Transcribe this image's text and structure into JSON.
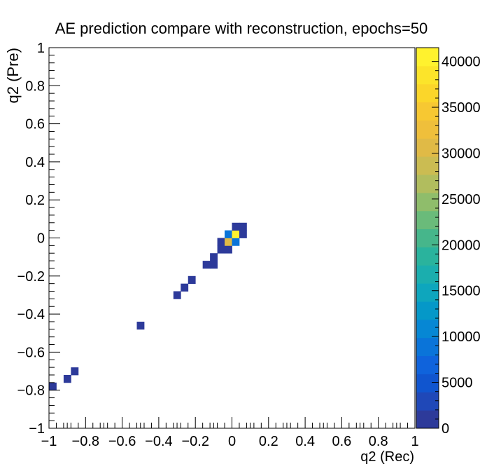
{
  "chart_data": {
    "type": "heatmap",
    "title": "AE prediction compare with reconstruction, epochs=50",
    "xlabel": "q2 (Rec)",
    "ylabel": "q2 (Pre)",
    "xlim": [
      -1,
      1
    ],
    "ylim": [
      -1,
      1
    ],
    "bin_width": 0.04,
    "x_ticks": [
      -1,
      -0.8,
      -0.6,
      -0.4,
      -0.2,
      0,
      0.2,
      0.4,
      0.6,
      0.8,
      1
    ],
    "x_tick_labels": [
      "−1",
      "−0.8",
      "−0.6",
      "−0.4",
      "−0.2",
      "0",
      "0.2",
      "0.4",
      "0.6",
      "0.8",
      "1"
    ],
    "y_ticks": [
      -1,
      -0.8,
      -0.6,
      -0.4,
      -0.2,
      0,
      0.2,
      0.4,
      0.6,
      0.8,
      1
    ],
    "y_tick_labels": [
      "−1",
      "−0.8",
      "−0.6",
      "−0.4",
      "−0.2",
      "0",
      "0.2",
      "0.4",
      "0.6",
      "0.8",
      "1"
    ],
    "colorbar": {
      "min": 0,
      "max": 41500,
      "ticks": [
        0,
        5000,
        10000,
        15000,
        20000,
        25000,
        30000,
        35000,
        40000
      ],
      "tick_labels": [
        "0",
        "5000",
        "10000",
        "15000",
        "20000",
        "25000",
        "30000",
        "35000",
        "40000"
      ],
      "palette": [
        "#2d3a9a",
        "#1f48b8",
        "#1055cf",
        "#0f63dc",
        "#0a74d9",
        "#0687d4",
        "#0598c8",
        "#0ea6bd",
        "#1baeae",
        "#2ab39d",
        "#46b68b",
        "#6abb7a",
        "#8fbd6b",
        "#b1bd5e",
        "#cbbc52",
        "#e0ba46",
        "#efbf3b",
        "#f7c832",
        "#fbd62a",
        "#fce42a",
        "#fff22e"
      ]
    },
    "bins": [
      {
        "x": -0.98,
        "y": -0.78,
        "z": 800
      },
      {
        "x": -0.9,
        "y": -0.74,
        "z": 800
      },
      {
        "x": -0.86,
        "y": -0.7,
        "z": 800
      },
      {
        "x": -0.5,
        "y": -0.46,
        "z": 800
      },
      {
        "x": -0.3,
        "y": -0.3,
        "z": 800
      },
      {
        "x": -0.26,
        "y": -0.26,
        "z": 800
      },
      {
        "x": -0.22,
        "y": -0.22,
        "z": 800
      },
      {
        "x": -0.14,
        "y": -0.14,
        "z": 800
      },
      {
        "x": -0.1,
        "y": -0.14,
        "z": 800
      },
      {
        "x": -0.1,
        "y": -0.1,
        "z": 800
      },
      {
        "x": -0.06,
        "y": -0.06,
        "z": 1200
      },
      {
        "x": -0.02,
        "y": -0.06,
        "z": 1200
      },
      {
        "x": -0.06,
        "y": -0.02,
        "z": 1500
      },
      {
        "x": -0.02,
        "y": -0.02,
        "z": 31000
      },
      {
        "x": 0.02,
        "y": -0.02,
        "z": 9000
      },
      {
        "x": -0.02,
        "y": 0.02,
        "z": 9000
      },
      {
        "x": 0.02,
        "y": 0.02,
        "z": 41000
      },
      {
        "x": 0.06,
        "y": 0.02,
        "z": 1200
      },
      {
        "x": 0.02,
        "y": 0.06,
        "z": 1200
      },
      {
        "x": 0.06,
        "y": 0.06,
        "z": 1200
      }
    ]
  }
}
